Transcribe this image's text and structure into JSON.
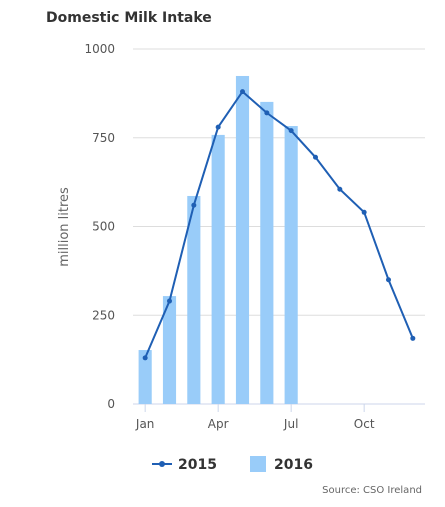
{
  "chart_data": {
    "type": "combo",
    "title": "Domestic Milk Intake",
    "y_label": "million litres",
    "source": "Source: CSO Ireland",
    "categories": [
      "Jan",
      null,
      null,
      "Apr",
      null,
      null,
      "Jul",
      null,
      null,
      "Oct",
      null,
      null
    ],
    "series": [
      {
        "name": "2015",
        "type": "line",
        "color": "#1f5fb4",
        "values": [
          130,
          290,
          560,
          780,
          880,
          820,
          770,
          695,
          605,
          540,
          350,
          185
        ]
      },
      {
        "name": "2016",
        "type": "bar",
        "color": "#99ccf9",
        "values": [
          152,
          304,
          586,
          758,
          924,
          851,
          783,
          null,
          null,
          null,
          null,
          null
        ]
      }
    ],
    "ylim": [
      0,
      1000
    ],
    "yticks": [
      0,
      250,
      500,
      750,
      1000
    ],
    "grid": true,
    "legend": "bottom"
  }
}
